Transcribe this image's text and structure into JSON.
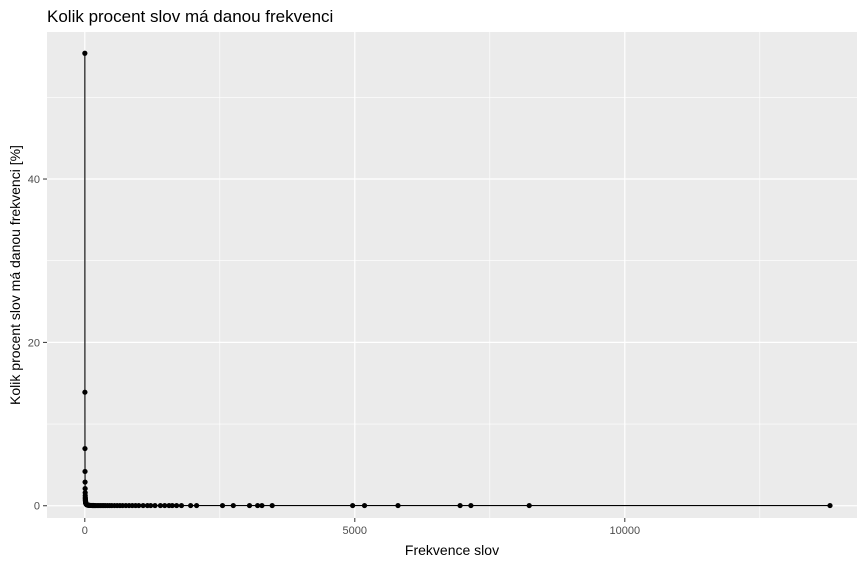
{
  "chart_data": {
    "type": "line",
    "title": "Kolik procent slov má danou frekvenci",
    "xlabel": "Frekvence slov",
    "ylabel": "Kolik procent slov má danou frekvenci [%]",
    "xlim": [
      -700,
      14300
    ],
    "ylim": [
      -1.5,
      58
    ],
    "x_ticks": [
      0,
      5000,
      10000
    ],
    "x_tick_labels": [
      "0",
      "5000",
      "10000"
    ],
    "y_ticks": [
      0,
      20,
      40
    ],
    "y_tick_labels": [
      "0",
      "20",
      "40"
    ],
    "grid": true,
    "legend": "none",
    "colors": {
      "panel": "#EBEBEB",
      "grid": "#FFFFFF",
      "line": "#000000",
      "points": "#000000"
    },
    "series": [
      {
        "x": [
          1,
          2,
          3,
          4,
          5,
          6,
          7,
          8,
          9,
          10,
          11,
          12,
          13,
          14,
          15,
          16,
          17,
          18,
          19,
          20,
          22,
          25,
          28,
          30,
          35,
          40,
          45,
          50,
          60,
          70,
          80,
          90,
          100,
          120,
          140,
          160,
          180,
          200,
          230,
          260,
          290,
          320,
          350,
          380,
          420,
          460,
          500,
          550,
          600,
          650,
          700,
          760,
          820,
          880,
          940,
          1000,
          1080,
          1160,
          1220,
          1300,
          1400,
          1480,
          1560,
          1620,
          1700,
          1790,
          1960,
          2070,
          2550,
          2750,
          3050,
          3200,
          3280,
          3470,
          4960,
          5180,
          5800,
          6950,
          7150,
          8230,
          13800
        ],
        "y": [
          55.4,
          13.9,
          7.0,
          4.2,
          2.9,
          2.1,
          1.6,
          1.25,
          1.0,
          0.85,
          0.72,
          0.62,
          0.55,
          0.48,
          0.43,
          0.39,
          0.35,
          0.32,
          0.29,
          0.27,
          0.24,
          0.21,
          0.18,
          0.16,
          0.14,
          0.12,
          0.1,
          0.09,
          0.07,
          0.06,
          0.05,
          0.045,
          0.04,
          0.035,
          0.03,
          0.03,
          0.025,
          0.025,
          0.02,
          0.02,
          0.02,
          0.02,
          0.02,
          0.02,
          0.02,
          0.02,
          0.02,
          0.02,
          0.02,
          0.02,
          0.02,
          0.02,
          0.02,
          0.02,
          0.02,
          0.02,
          0.02,
          0.02,
          0.02,
          0.02,
          0.02,
          0.02,
          0.02,
          0.02,
          0.02,
          0.02,
          0.02,
          0.02,
          0.02,
          0.02,
          0.02,
          0.02,
          0.02,
          0.02,
          0.02,
          0.02,
          0.02,
          0.02,
          0.02,
          0.02,
          0.02
        ]
      }
    ]
  }
}
